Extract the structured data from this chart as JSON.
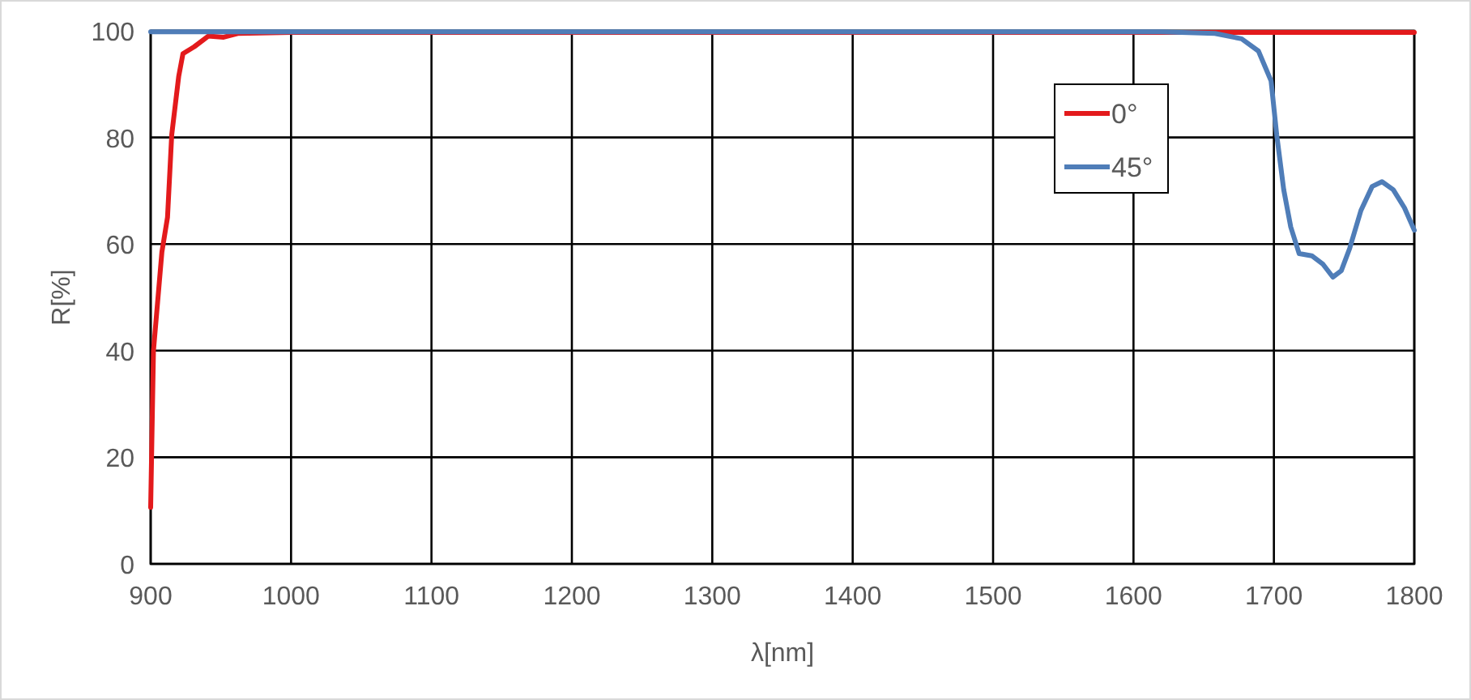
{
  "chart_data": {
    "type": "line",
    "xlabel": "λ[nm]",
    "ylabel": "R[%]",
    "xlim": [
      900,
      1800
    ],
    "xticks": [
      900,
      1000,
      1100,
      1200,
      1300,
      1400,
      1500,
      1600,
      1700,
      1800
    ],
    "ylim": [
      0,
      100
    ],
    "yticks": [
      0,
      20,
      40,
      60,
      80,
      100
    ],
    "grid": true,
    "legend": "top right",
    "line_style": "solid",
    "series": [
      {
        "name": "0°",
        "color": "#e31a1c",
        "x": [
          900,
          902,
          908,
          912,
          915,
          920,
          923,
          931,
          941,
          952,
          962,
          1000,
          1200,
          1400,
          1600,
          1800
        ],
        "values": [
          10.6,
          40,
          58.5,
          65,
          80.5,
          91.5,
          95.7,
          97,
          99,
          98.8,
          99.5,
          99.7,
          99.7,
          99.7,
          99.7,
          99.7
        ]
      },
      {
        "name": "45°",
        "color": "#4f7db8",
        "x": [
          900,
          1100,
          1300,
          1500,
          1620,
          1658,
          1677,
          1689,
          1698,
          1702,
          1707,
          1712,
          1718,
          1727,
          1735,
          1742,
          1748,
          1754,
          1762,
          1770,
          1777,
          1785,
          1793,
          1800
        ],
        "values": [
          99.8,
          99.8,
          99.8,
          99.8,
          99.8,
          99.5,
          98.5,
          96.2,
          90.6,
          80.5,
          70.2,
          63.2,
          58.2,
          57.8,
          56.2,
          53.8,
          55,
          59.2,
          66.3,
          70.8,
          71.7,
          70.2,
          66.8,
          62.6
        ]
      }
    ]
  }
}
